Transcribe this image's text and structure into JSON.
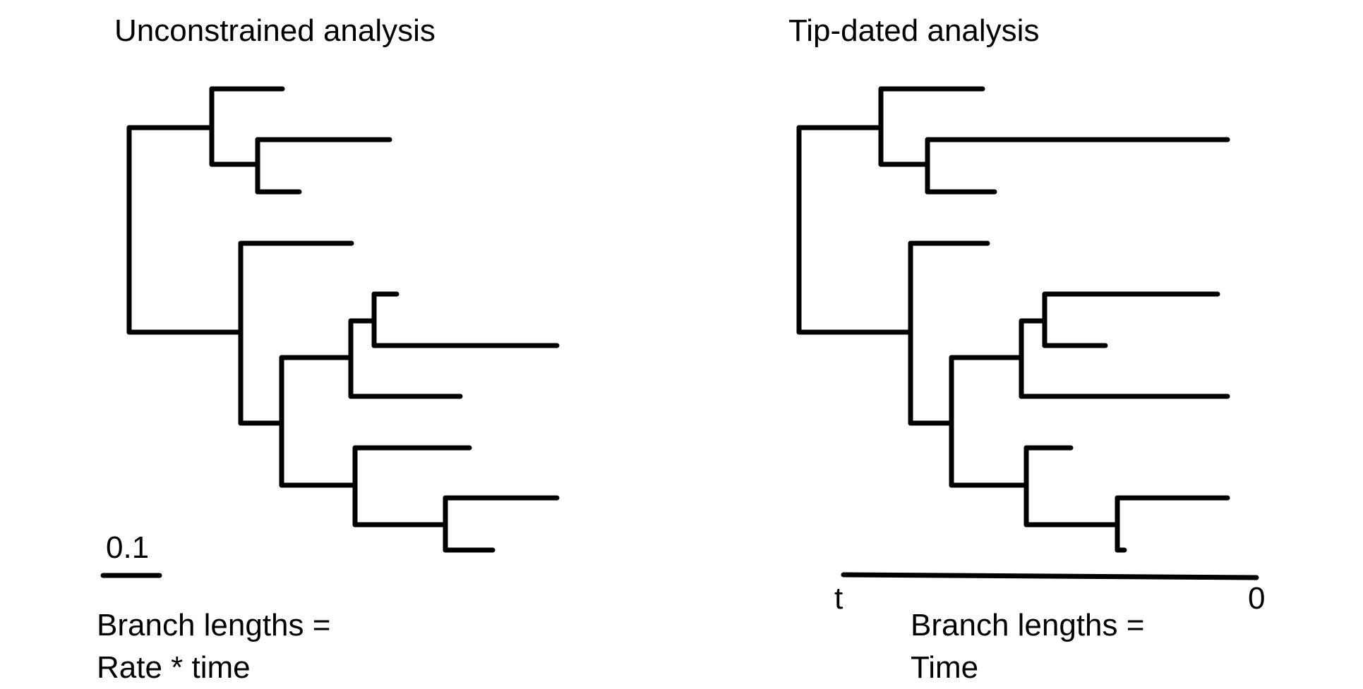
{
  "left": {
    "title": "Unconstrained analysis",
    "scale_label": "0.1",
    "caption_line1": "Branch lengths =",
    "caption_line2": "Rate * time"
  },
  "right": {
    "title": "Tip-dated analysis",
    "axis_start": "t",
    "axis_end": "0",
    "caption_line1": "Branch lengths =",
    "caption_line2": "Time"
  }
}
